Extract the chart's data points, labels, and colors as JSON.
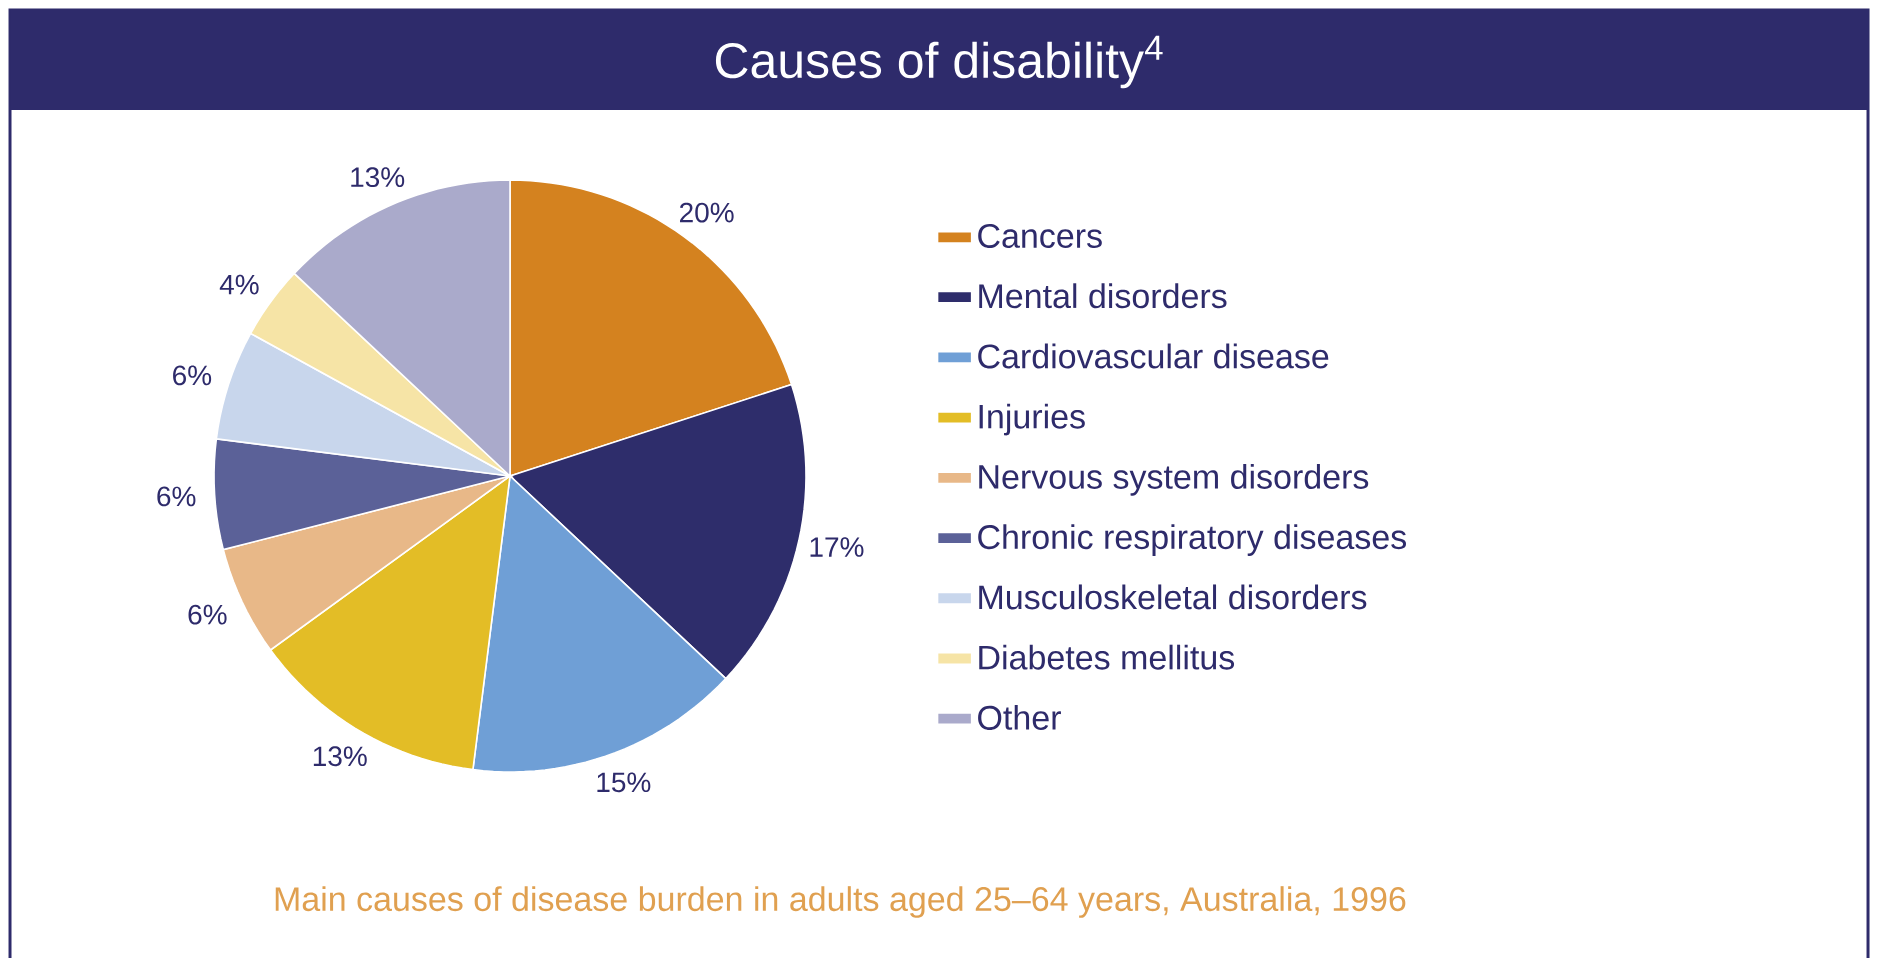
{
  "chart_data": {
    "type": "pie",
    "title": "Causes of disability$^{4}$",
    "categories": [
      "Cancers",
      "Mental disorders",
      "Cardiovascular disease",
      "Injuries",
      "Nervous system disorders",
      "Chronic respiratory diseases",
      "Musculoskeletal disorders",
      "Diabetes mellitus",
      "Other"
    ],
    "values": [
      20,
      17,
      15,
      13,
      6,
      6,
      6,
      4,
      13
    ],
    "value_labels": [
      "20%",
      "17%",
      "15%",
      "13%",
      "6%",
      "6%",
      "6%",
      "4%",
      "13%"
    ],
    "colors": [
      "#d4821f",
      "#2e2d6b",
      "#6f9fd6",
      "#e3bd26",
      "#e8b888",
      "#5b6198",
      "#c8d6ec",
      "#f6e4a6",
      "#aaaacb"
    ],
    "legend": "right",
    "annotations": [
      "Main causes of disease burden in adults aged 25–64 years, Australia, 1996"
    ]
  }
}
